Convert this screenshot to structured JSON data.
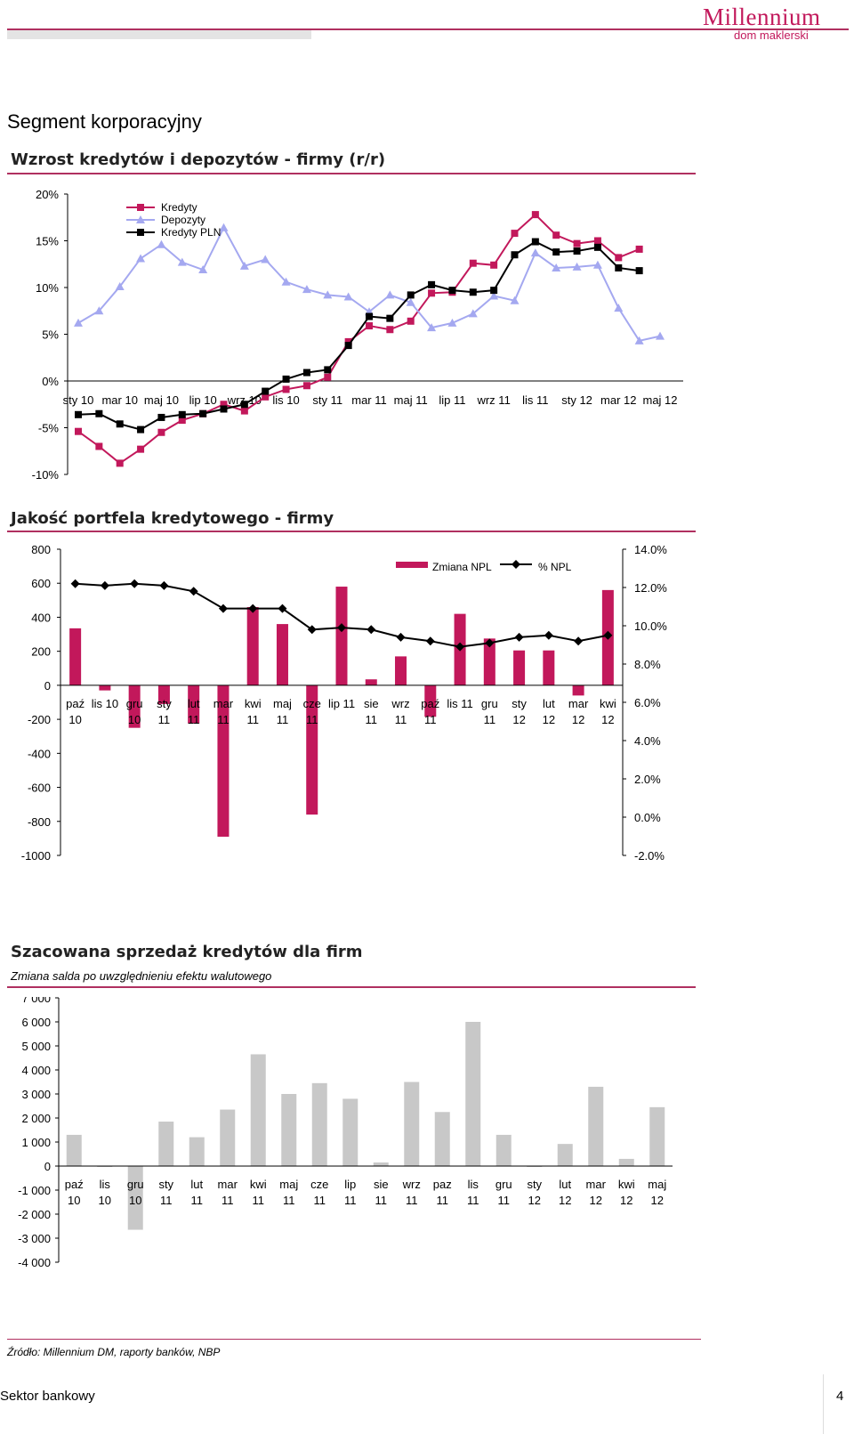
{
  "header": {
    "logo_main": "Millennium",
    "logo_sub": "dom maklerski"
  },
  "section_title": "Segment korporacyjny",
  "footer": {
    "left": "Sektor bankowy",
    "page": "4",
    "source": "Źródło: Millennium DM, raporty banków, NBP"
  },
  "colors": {
    "magenta": "#c2185b",
    "lavender": "#a4a8f0",
    "black": "#000000",
    "grey": "#c8c8c8",
    "rule": "#b03060"
  },
  "chart_data": [
    {
      "type": "line",
      "title": "Wzrost kredytów i depozytów - firmy (r/r)",
      "y_ticks": [
        "20%",
        "15%",
        "10%",
        "5%",
        "0%",
        "-5%",
        "-10%"
      ],
      "ylim": [
        -10,
        20
      ],
      "x_tick_labels": [
        "sty 10",
        "mar 10",
        "maj 10",
        "lip 10",
        "wrz 10",
        "lis 10",
        "sty 11",
        "mar 11",
        "maj 11",
        "lip 11",
        "wrz 11",
        "lis 11",
        "sty 12",
        "mar 12",
        "maj 12"
      ],
      "n_points": 29,
      "legend": "top-left",
      "series": [
        {
          "name": "Kredyty",
          "color": "#c2185b",
          "marker": "square",
          "values": [
            -5.4,
            -7.0,
            -8.8,
            -7.3,
            -5.5,
            -4.2,
            -3.5,
            -2.5,
            -3.2,
            -1.7,
            -0.9,
            -0.5,
            0.4,
            4.2,
            5.9,
            5.5,
            6.4,
            9.4,
            9.5,
            12.6,
            12.4,
            15.8,
            17.8,
            15.6,
            14.7,
            15.0,
            13.2,
            14.1,
            null
          ]
        },
        {
          "name": "Depozyty",
          "color": "#a4a8f0",
          "marker": "triangle",
          "values": [
            6.2,
            7.5,
            10.1,
            13.1,
            14.6,
            12.7,
            11.9,
            16.4,
            12.3,
            13.0,
            10.6,
            9.8,
            9.2,
            9.0,
            7.4,
            9.2,
            8.4,
            5.7,
            6.2,
            7.2,
            9.1,
            8.6,
            13.7,
            12.1,
            12.2,
            12.4,
            7.8,
            4.3,
            4.8
          ]
        },
        {
          "name": "Kredyty PLN",
          "color": "#000000",
          "marker": "square",
          "values": [
            -3.6,
            -3.5,
            -4.6,
            -5.2,
            -3.9,
            -3.6,
            -3.5,
            -3.0,
            -2.5,
            -1.1,
            0.2,
            0.9,
            1.2,
            3.8,
            6.9,
            6.7,
            9.2,
            10.3,
            9.7,
            9.5,
            9.7,
            13.5,
            14.9,
            13.8,
            13.9,
            14.3,
            12.1,
            11.8,
            null
          ]
        }
      ]
    },
    {
      "type": "bar+line",
      "title": "Jakość portfela kredytowego - firmy",
      "left_ticks": [
        "800",
        "600",
        "400",
        "200",
        "0",
        "-200",
        "-400",
        "-600",
        "-800",
        "-1000"
      ],
      "right_ticks": [
        "14.0%",
        "12.0%",
        "10.0%",
        "8.0%",
        "6.0%",
        "4.0%",
        "2.0%",
        "0.0%",
        "-2.0%"
      ],
      "ylim_left": [
        -1000,
        800
      ],
      "ylim_right": [
        -2,
        14
      ],
      "legend": "top-right",
      "categories": [
        [
          "paź",
          "10"
        ],
        [
          "lis 10",
          ""
        ],
        [
          "gru",
          "10"
        ],
        [
          "sty",
          "11"
        ],
        [
          "lut",
          "11"
        ],
        [
          "mar",
          "11"
        ],
        [
          "kwi",
          "11"
        ],
        [
          "maj",
          "11"
        ],
        [
          "cze",
          "11"
        ],
        [
          "lip 11",
          ""
        ],
        [
          "sie",
          "11"
        ],
        [
          "wrz",
          "11"
        ],
        [
          "paź",
          "11"
        ],
        [
          "lis 11",
          ""
        ],
        [
          "gru",
          "11"
        ],
        [
          "sty",
          "12"
        ],
        [
          "lut",
          "12"
        ],
        [
          "mar",
          "12"
        ],
        [
          "kwi",
          "12"
        ]
      ],
      "series": [
        {
          "name": "Zmiana NPL",
          "color": "#c2185b",
          "values": [
            335,
            -30,
            -250,
            -110,
            -225,
            -890,
            460,
            360,
            -760,
            580,
            35,
            170,
            -185,
            420,
            275,
            205,
            205,
            -60,
            560
          ]
        },
        {
          "name": "% NPL",
          "color": "#000000",
          "marker": "diamond",
          "values": [
            12.2,
            12.1,
            12.2,
            12.1,
            11.8,
            10.9,
            10.9,
            10.9,
            9.8,
            9.9,
            9.8,
            9.4,
            9.2,
            8.9,
            9.1,
            9.4,
            9.5,
            9.2,
            9.5
          ]
        }
      ]
    },
    {
      "type": "bar",
      "title": "Szacowana sprzedaż kredytów dla firm",
      "subtitle": "Zmiana salda po uwzględnieniu efektu walutowego",
      "y_ticks": [
        "7 000",
        "6 000",
        "5 000",
        "4 000",
        "3 000",
        "2 000",
        "1 000",
        "0",
        "-1 000",
        "-2 000",
        "-3 000",
        "-4 000"
      ],
      "ylim": [
        -4000,
        7000
      ],
      "color": "#c8c8c8",
      "categories": [
        [
          "paź",
          "10"
        ],
        [
          "lis",
          "10"
        ],
        [
          "gru",
          "10"
        ],
        [
          "sty",
          "11"
        ],
        [
          "lut",
          "11"
        ],
        [
          "mar",
          "11"
        ],
        [
          "kwi",
          "11"
        ],
        [
          "maj",
          "11"
        ],
        [
          "cze",
          "11"
        ],
        [
          "lip",
          "11"
        ],
        [
          "sie",
          "11"
        ],
        [
          "wrz",
          "11"
        ],
        [
          "paz",
          "11"
        ],
        [
          "lis",
          "11"
        ],
        [
          "gru",
          "11"
        ],
        [
          "sty",
          "12"
        ],
        [
          "lut",
          "12"
        ],
        [
          "mar",
          "12"
        ],
        [
          "kwi",
          "12"
        ],
        [
          "maj",
          "12"
        ]
      ],
      "values": [
        1300,
        -20,
        -2650,
        1850,
        1200,
        2350,
        4650,
        3000,
        3450,
        2800,
        150,
        3500,
        2250,
        6000,
        1300,
        -20,
        920,
        3300,
        300,
        2450
      ]
    }
  ]
}
